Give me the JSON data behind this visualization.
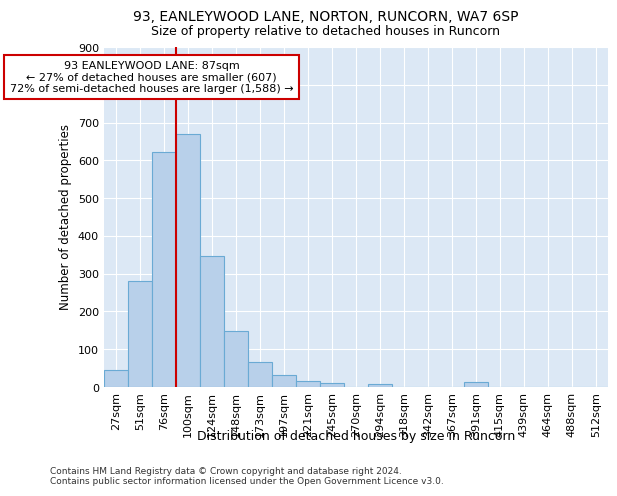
{
  "title1": "93, EANLEYWOOD LANE, NORTON, RUNCORN, WA7 6SP",
  "title2": "Size of property relative to detached houses in Runcorn",
  "xlabel": "Distribution of detached houses by size in Runcorn",
  "ylabel": "Number of detached properties",
  "footnote1": "Contains HM Land Registry data © Crown copyright and database right 2024.",
  "footnote2": "Contains public sector information licensed under the Open Government Licence v3.0.",
  "bar_labels": [
    "27sqm",
    "51sqm",
    "76sqm",
    "100sqm",
    "124sqm",
    "148sqm",
    "173sqm",
    "197sqm",
    "221sqm",
    "245sqm",
    "270sqm",
    "294sqm",
    "318sqm",
    "342sqm",
    "367sqm",
    "391sqm",
    "415sqm",
    "439sqm",
    "464sqm",
    "488sqm",
    "512sqm"
  ],
  "bar_values": [
    46,
    281,
    621,
    669,
    346,
    148,
    67,
    31,
    16,
    11,
    0,
    9,
    0,
    0,
    0,
    12,
    0,
    0,
    0,
    0,
    0
  ],
  "bar_color": "#b8d0ea",
  "bar_edge_color": "#6aaad4",
  "property_line_color": "#cc0000",
  "annotation_text": "93 EANLEYWOOD LANE: 87sqm\n← 27% of detached houses are smaller (607)\n72% of semi-detached houses are larger (1,588) →",
  "annotation_box_color": "#ffffff",
  "annotation_box_edge": "#cc0000",
  "ylim": [
    0,
    900
  ],
  "yticks": [
    0,
    100,
    200,
    300,
    400,
    500,
    600,
    700,
    800,
    900
  ],
  "bg_color": "#dce8f5",
  "fig_bg_color": "#ffffff",
  "title1_fontsize": 10,
  "title2_fontsize": 9,
  "xlabel_fontsize": 9,
  "ylabel_fontsize": 8.5,
  "tick_fontsize": 8,
  "annotation_fontsize": 8,
  "footnote_fontsize": 6.5
}
